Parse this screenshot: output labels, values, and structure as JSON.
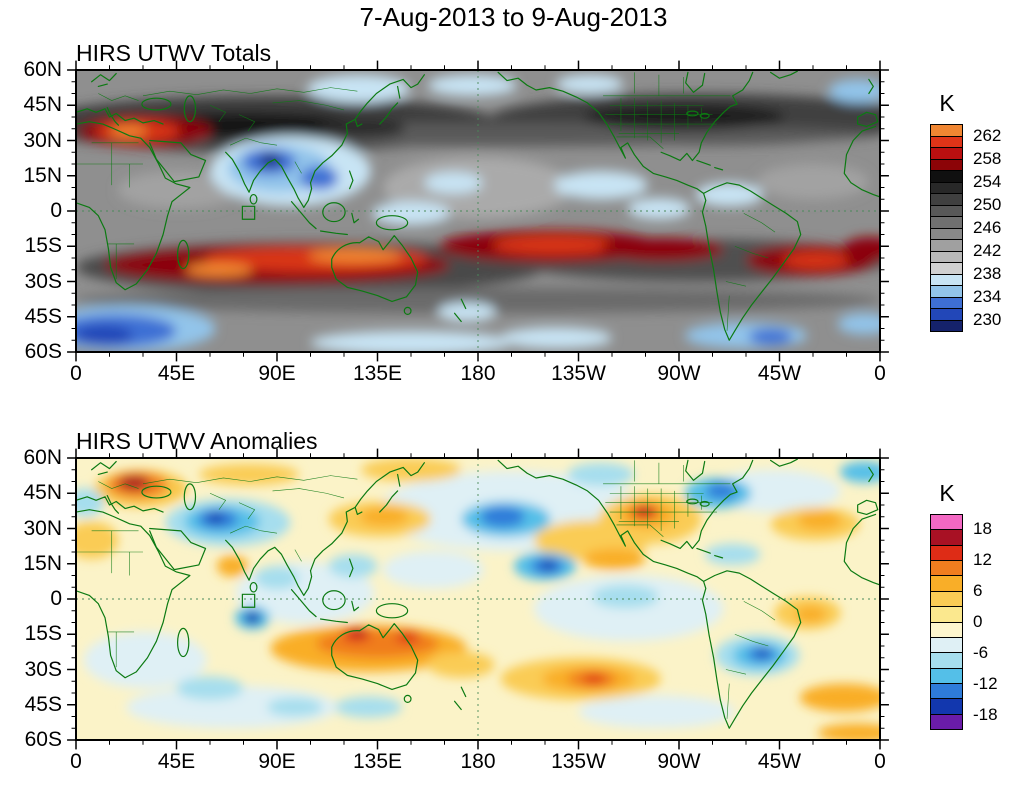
{
  "title": "7-Aug-2013 to 9-Aug-2013",
  "axes": {
    "y_ticks": [
      "60N",
      "45N",
      "30N",
      "15N",
      "0",
      "15S",
      "30S",
      "45S",
      "60S"
    ],
    "x_ticks": [
      "0",
      "45E",
      "90E",
      "135E",
      "180",
      "135W",
      "90W",
      "45W",
      "0"
    ]
  },
  "panels": [
    {
      "title": "HIRS UTWV Totals",
      "colorbar": {
        "unit": "K",
        "labels": [
          "262",
          "258",
          "254",
          "250",
          "246",
          "242",
          "238",
          "234",
          "230"
        ],
        "colors": [
          "#F08632",
          "#DF3418",
          "#BA0F10",
          "#8C0407",
          "#101010",
          "#282828",
          "#404040",
          "#585858",
          "#707070",
          "#888888",
          "#A0A0A0",
          "#B8B8B8",
          "#D0D0D0",
          "#C8E4F4",
          "#92C4EA",
          "#3E6FD4",
          "#2247B8",
          "#15226B"
        ]
      }
    },
    {
      "title": "HIRS UTWV Anomalies",
      "colorbar": {
        "unit": "K",
        "labels": [
          "18",
          "12",
          "6",
          "0",
          "-6",
          "-12",
          "-18"
        ],
        "colors": [
          "#F368C3",
          "#A81124",
          "#DE2C16",
          "#F07D1F",
          "#F9AE28",
          "#FACC55",
          "#FBE88E",
          "#FDF6CE",
          "#DFF0F5",
          "#A6DEEE",
          "#54BFE8",
          "#2E7BD9",
          "#1237AE",
          "#6A1CA8"
        ]
      }
    }
  ],
  "chart_data": [
    {
      "type": "heatmap",
      "subtype": "filled-contour world map",
      "title": "HIRS UTWV Totals",
      "period": "7-Aug-2013 to 9-Aug-2013",
      "units": "K",
      "lat_ticks": [
        "60N",
        "45N",
        "30N",
        "15N",
        "0",
        "15S",
        "30S",
        "45S",
        "60S"
      ],
      "lon_ticks": [
        "0",
        "45E",
        "90E",
        "135E",
        "180",
        "135W",
        "90W",
        "45W",
        "0"
      ],
      "lat_range": [
        "60S",
        "60N"
      ],
      "lon_range": [
        "0E eastward to 0E (0-360)"
      ],
      "colorbar_levels": [
        262,
        258,
        254,
        250,
        246,
        242,
        238,
        234,
        230
      ],
      "approx_value_range_K": [
        228,
        264
      ],
      "grid_lines": [
        "dashed equator",
        "dashed 180 meridian"
      ],
      "legend_position": "right",
      "features": [
        {
          "region": "North Africa / Middle East",
          "lat": "30N-40N",
          "lon": "0E-60E",
          "value_K": "254-264 warm (red with orange core)"
        },
        {
          "region": "Southern Indian Ocean to Australia",
          "lat": "10S-28S",
          "lon": "40E-165E",
          "value_K": "254-264 warm band, orange cores near 60E and NW Australia"
        },
        {
          "region": "Central South Pacific extending to South America",
          "lat": "8S-22S",
          "lon": "175E-60W",
          "value_K": "254-260 warm band"
        },
        {
          "region": "South Atlantic / Brazil coast",
          "lat": "15S-25S",
          "lon": "45W-0",
          "value_K": "254-260 warm"
        },
        {
          "region": "India / Bay of Bengal / Southeast Asia",
          "lat": "0-25N",
          "lon": "70E-115E",
          "value_K": "230-238 cold (blue cores)"
        },
        {
          "region": "Northern midlatitude band",
          "lat": "30N-50N",
          "lon": "most longitudes",
          "value_K": "246-254 dark gray"
        },
        {
          "region": "Southern subtropical band",
          "lat": "15S-35S",
          "lon": "most longitudes",
          "value_K": "246-254 dark gray"
        },
        {
          "region": "South of Africa",
          "lat": "45S-60S",
          "lon": "0E-35E",
          "value_K": "230-236 blue"
        },
        {
          "region": "Equatorial and 60S fringes",
          "lat": "various",
          "lon": "various",
          "value_K": "236-240 light blue patches"
        }
      ]
    },
    {
      "type": "heatmap",
      "subtype": "filled-contour world map",
      "title": "HIRS UTWV Anomalies",
      "period": "7-Aug-2013 to 9-Aug-2013",
      "units": "K",
      "lat_ticks": [
        "60N",
        "45N",
        "30N",
        "15N",
        "0",
        "15S",
        "30S",
        "45S",
        "60S"
      ],
      "lon_ticks": [
        "0",
        "45E",
        "90E",
        "135E",
        "180",
        "135W",
        "90W",
        "45W",
        "0"
      ],
      "lat_range": [
        "60S",
        "60N"
      ],
      "lon_range": [
        "0E eastward to 0E (0-360)"
      ],
      "colorbar_levels": [
        18,
        12,
        6,
        0,
        -6,
        -12,
        -18
      ],
      "approx_value_range_K": [
        -18,
        18
      ],
      "grid_lines": [
        "dashed equator",
        "dashed 180 meridian"
      ],
      "legend_position": "right",
      "features": [
        {
          "region": "Eastern Europe",
          "lat": "42N-50N",
          "lon": "20E-40E",
          "anomaly_K": "+9 to +18 (dark red core)"
        },
        {
          "region": "Central Asia",
          "lat": "25N-42N",
          "lon": "55E-80E",
          "anomaly_K": "-6 to -15 (blue core)"
        },
        {
          "region": "Australia and surroundings",
          "lat": "10S-28S",
          "lon": "105E-160E",
          "anomaly_K": "+6 to +15 (orange band, red spots)"
        },
        {
          "region": "Northwest Pacific near Japan",
          "lat": "25N-40N",
          "lon": "125E-155E",
          "anomaly_K": "+3 to +9"
        },
        {
          "region": "Central North Pacific",
          "lat": "8N-18N",
          "lon": "175W-155W",
          "anomaly_K": "-6 to -18 (blue core)"
        },
        {
          "region": "Date-line North Pacific",
          "lat": "30N-40N",
          "lon": "170E-170W",
          "anomaly_K": "-6 to -12"
        },
        {
          "region": "Southwestern United States / Mexico",
          "lat": "22N-38N",
          "lon": "115W-95W",
          "anomaly_K": "+6 to +15 (red core)"
        },
        {
          "region": "Northeastern North America",
          "lat": "38N-50N",
          "lon": "80W-65W",
          "anomaly_K": "-6 to -12"
        },
        {
          "region": "Southern Brazil / Paraguay",
          "lat": "18S-30S",
          "lon": "62W-48W",
          "anomaly_K": "-6 to -18 (dark blue core)"
        },
        {
          "region": "Central South Pacific",
          "lat": "25S-35S",
          "lon": "150W-130W",
          "anomaly_K": "+6 to +15 (red core)"
        },
        {
          "region": "Indian Ocean",
          "lat": "5S-12S",
          "lon": "75E-85E",
          "anomaly_K": "-12 to -18 (small dark blue spot)"
        },
        {
          "region": "Background elsewhere",
          "lat": "-",
          "lon": "-",
          "anomaly_K": "-3 to +3 (pale yellow / pale cyan)"
        }
      ]
    }
  ]
}
